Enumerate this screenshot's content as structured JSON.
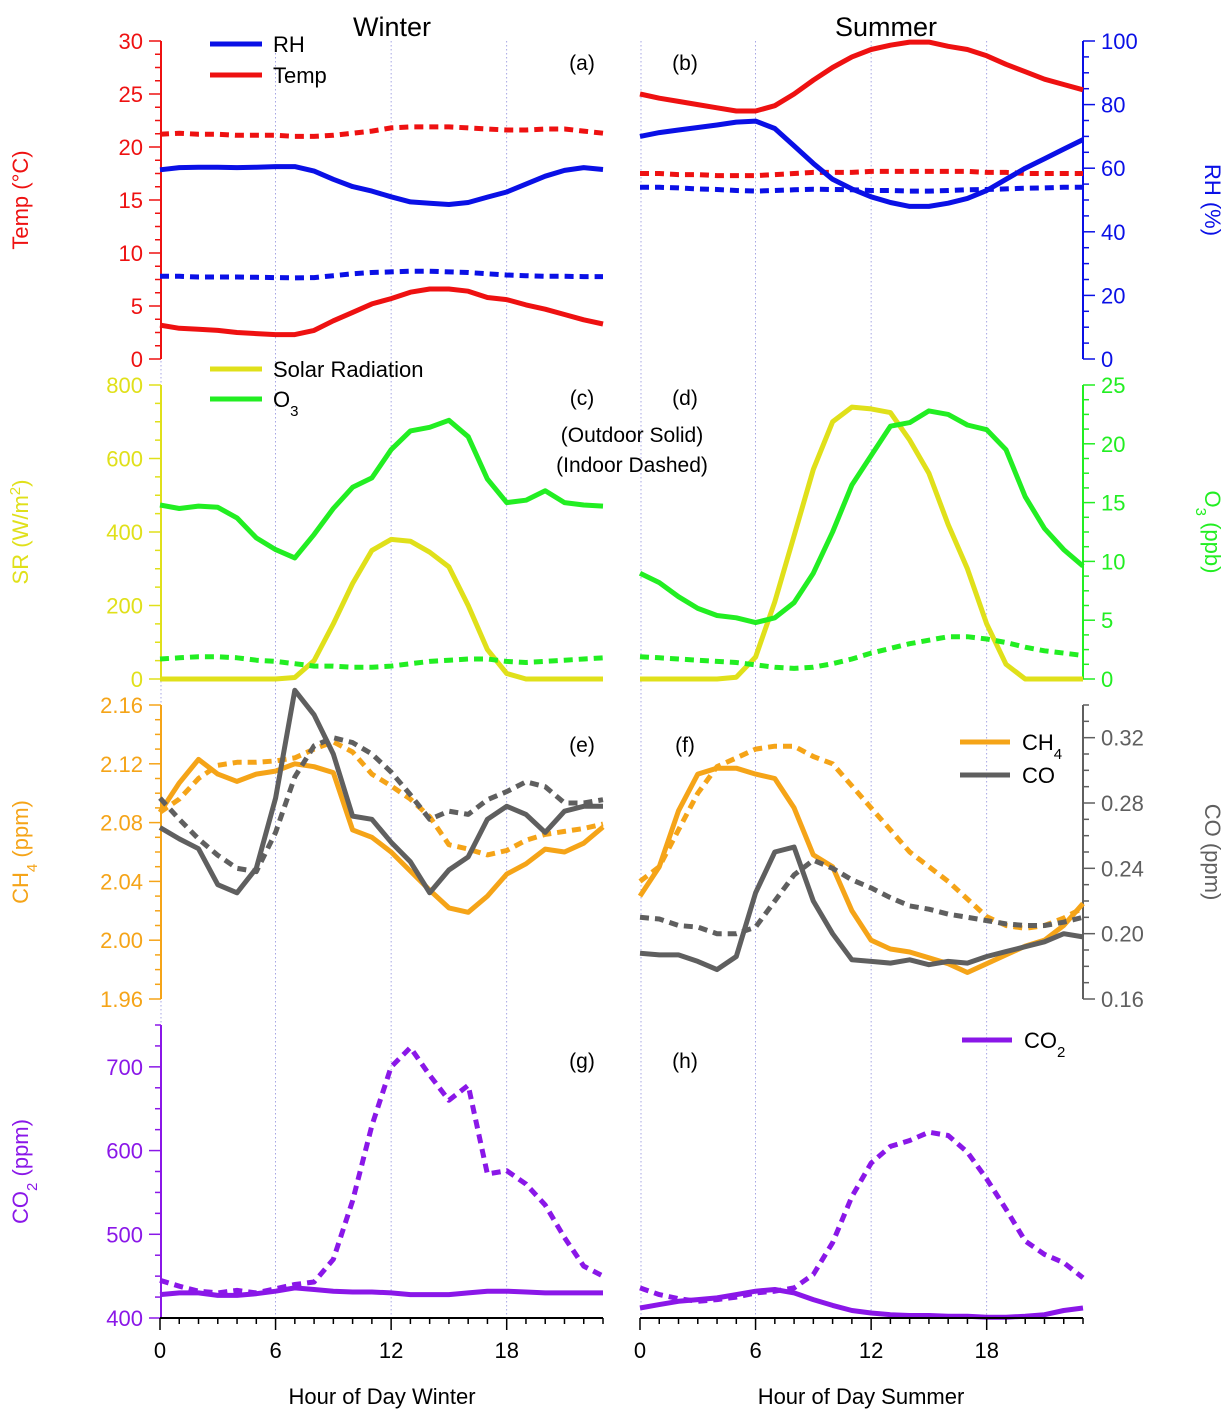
{
  "figure": {
    "title_winter": "Winter",
    "title_summer": "Summer",
    "xlabel_winter": "Hour of Day Winter",
    "xlabel_summer": "Hour of Day Summer",
    "note_outdoor": "(Outdoor Solid)",
    "note_indoor": "(Indoor Dashed)",
    "x_ticks": [
      "0",
      "6",
      "12",
      "18"
    ]
  },
  "colors": {
    "rh": "#0a10e6",
    "temp": "#ee1111",
    "sr": "#e0e01a",
    "o3": "#22ee22",
    "ch4": "#f5a418",
    "co": "#5f5f5f",
    "co2": "#8a17e8",
    "gridline": "#9090dd"
  },
  "chart_data": [
    {
      "type": "line",
      "panels": [
        "(a)",
        "(b)"
      ],
      "x_range": [
        0,
        23
      ],
      "left_axis": {
        "label": "Temp (°C)",
        "ylim": [
          0,
          30
        ],
        "ticks": [
          "0",
          "5",
          "10",
          "15",
          "20",
          "25",
          "30"
        ],
        "color": "#ee1111"
      },
      "right_axis": {
        "label": "RH (%)",
        "ylim": [
          0,
          100
        ],
        "ticks": [
          "0",
          "20",
          "40",
          "60",
          "80",
          "100"
        ],
        "color": "#0a10e6"
      },
      "legend": [
        "RH",
        "Temp"
      ],
      "series": [
        {
          "name": "Temp",
          "season": "winter",
          "style": "solid",
          "axis": "left",
          "color": "#ee1111",
          "values": [
            3.2,
            2.9,
            2.8,
            2.7,
            2.5,
            2.4,
            2.3,
            2.3,
            2.7,
            3.6,
            4.4,
            5.2,
            5.7,
            6.3,
            6.6,
            6.6,
            6.4,
            5.8,
            5.6,
            5.1,
            4.7,
            4.2,
            3.7,
            3.3
          ]
        },
        {
          "name": "Temp",
          "season": "winter",
          "style": "dashed",
          "axis": "left",
          "color": "#ee1111",
          "values": [
            21.2,
            21.3,
            21.2,
            21.2,
            21.1,
            21.1,
            21.1,
            21.0,
            21.0,
            21.1,
            21.3,
            21.5,
            21.8,
            21.9,
            21.9,
            21.9,
            21.8,
            21.7,
            21.6,
            21.6,
            21.7,
            21.7,
            21.5,
            21.3
          ]
        },
        {
          "name": "RH",
          "season": "winter",
          "style": "solid",
          "axis": "right",
          "color": "#0a10e6",
          "values": [
            59.5,
            60.2,
            60.3,
            60.3,
            60.2,
            60.3,
            60.5,
            60.5,
            59.1,
            56.5,
            54.2,
            52.8,
            51.0,
            49.4,
            49.0,
            48.6,
            49.2,
            50.9,
            52.5,
            55.0,
            57.5,
            59.3,
            60.2,
            59.6
          ]
        },
        {
          "name": "RH",
          "season": "winter",
          "style": "dashed",
          "axis": "right",
          "color": "#0a10e6",
          "values": [
            26.0,
            26.0,
            25.8,
            25.8,
            25.8,
            25.7,
            25.6,
            25.5,
            25.6,
            26.2,
            26.8,
            27.2,
            27.4,
            27.6,
            27.6,
            27.4,
            27.2,
            26.8,
            26.4,
            26.2,
            26.0,
            26.0,
            25.9,
            25.9
          ]
        },
        {
          "name": "Temp",
          "season": "summer",
          "style": "solid",
          "axis": "left",
          "color": "#ee1111",
          "values": [
            25.0,
            24.6,
            24.3,
            24.0,
            23.7,
            23.4,
            23.4,
            23.9,
            25.0,
            26.3,
            27.5,
            28.5,
            29.2,
            29.6,
            29.9,
            29.9,
            29.5,
            29.2,
            28.6,
            27.8,
            27.1,
            26.4,
            25.9,
            25.4
          ]
        },
        {
          "name": "Temp",
          "season": "summer",
          "style": "dashed",
          "axis": "left",
          "color": "#ee1111",
          "values": [
            17.5,
            17.5,
            17.4,
            17.4,
            17.3,
            17.3,
            17.3,
            17.4,
            17.5,
            17.6,
            17.6,
            17.6,
            17.7,
            17.7,
            17.7,
            17.7,
            17.7,
            17.7,
            17.6,
            17.6,
            17.5,
            17.5,
            17.5,
            17.5
          ]
        },
        {
          "name": "RH",
          "season": "summer",
          "style": "solid",
          "axis": "right",
          "color": "#0a10e6",
          "values": [
            70.0,
            71.2,
            72.0,
            72.8,
            73.6,
            74.5,
            74.8,
            72.5,
            67.0,
            61.5,
            56.5,
            53.5,
            51.0,
            49.2,
            48.0,
            48.0,
            49.0,
            50.5,
            53.0,
            56.5,
            60.0,
            63.0,
            66.0,
            69.0
          ]
        },
        {
          "name": "RH",
          "season": "summer",
          "style": "dashed",
          "axis": "right",
          "color": "#0a10e6",
          "values": [
            54.0,
            54.0,
            53.8,
            53.5,
            53.3,
            53.0,
            52.8,
            53.0,
            53.2,
            53.4,
            53.3,
            53.2,
            53.0,
            53.0,
            52.8,
            52.8,
            53.0,
            53.2,
            53.3,
            53.5,
            53.7,
            53.8,
            54.0,
            54.0
          ]
        }
      ]
    },
    {
      "type": "line",
      "panels": [
        "(c)",
        "(d)"
      ],
      "x_range": [
        0,
        23
      ],
      "left_axis": {
        "label": "SR (W/m²)",
        "ylim": [
          0,
          800
        ],
        "ticks": [
          "0",
          "200",
          "400",
          "600",
          "800"
        ],
        "color": "#e0e01a"
      },
      "right_axis": {
        "label": "O₃ (ppb)",
        "ylim": [
          0,
          25
        ],
        "ticks": [
          "0",
          "5",
          "10",
          "15",
          "20",
          "25"
        ],
        "color": "#22ee22"
      },
      "legend": [
        "Solar Radiation",
        "O₃"
      ],
      "series": [
        {
          "name": "Solar Radiation",
          "season": "winter",
          "style": "solid",
          "axis": "left",
          "color": "#e0e01a",
          "values": [
            0,
            0,
            0,
            0,
            0,
            0,
            0,
            4,
            50,
            150,
            260,
            350,
            380,
            375,
            345,
            305,
            200,
            80,
            15,
            0,
            0,
            0,
            0,
            0
          ]
        },
        {
          "name": "O₃",
          "season": "winter",
          "style": "solid",
          "axis": "right",
          "color": "#22ee22",
          "values": [
            14.8,
            14.5,
            14.7,
            14.6,
            13.7,
            12.0,
            11.0,
            10.3,
            12.3,
            14.5,
            16.3,
            17.1,
            19.5,
            21.1,
            21.4,
            22.0,
            20.6,
            17.0,
            15.0,
            15.2,
            16.0,
            15.0,
            14.8,
            14.7
          ]
        },
        {
          "name": "O₃",
          "season": "winter",
          "style": "dashed",
          "axis": "right",
          "color": "#22ee22",
          "values": [
            1.7,
            1.8,
            1.9,
            1.9,
            1.8,
            1.6,
            1.5,
            1.3,
            1.1,
            1.1,
            1.0,
            1.0,
            1.1,
            1.3,
            1.5,
            1.6,
            1.7,
            1.7,
            1.5,
            1.4,
            1.5,
            1.6,
            1.7,
            1.8
          ]
        },
        {
          "name": "Solar Radiation",
          "season": "summer",
          "style": "solid",
          "axis": "left",
          "color": "#e0e01a",
          "values": [
            0,
            0,
            0,
            0,
            0,
            5,
            60,
            210,
            390,
            570,
            700,
            740,
            735,
            725,
            650,
            560,
            420,
            300,
            150,
            40,
            0,
            0,
            0,
            0
          ]
        },
        {
          "name": "O₃",
          "season": "summer",
          "style": "solid",
          "axis": "right",
          "color": "#22ee22",
          "values": [
            9.0,
            8.2,
            7.0,
            6.0,
            5.4,
            5.2,
            4.8,
            5.2,
            6.5,
            9.0,
            12.5,
            16.5,
            19.0,
            21.5,
            21.8,
            22.8,
            22.5,
            21.6,
            21.2,
            19.5,
            15.5,
            12.8,
            11.0,
            9.6
          ]
        },
        {
          "name": "O₃",
          "season": "summer",
          "style": "dashed",
          "axis": "right",
          "color": "#22ee22",
          "values": [
            1.9,
            1.8,
            1.7,
            1.6,
            1.5,
            1.4,
            1.2,
            1.0,
            0.9,
            1.0,
            1.3,
            1.7,
            2.2,
            2.6,
            3.0,
            3.3,
            3.6,
            3.6,
            3.4,
            3.1,
            2.7,
            2.4,
            2.2,
            2.0
          ]
        }
      ]
    },
    {
      "type": "line",
      "panels": [
        "(e)",
        "(f)"
      ],
      "x_range": [
        0,
        23
      ],
      "left_axis": {
        "label": "CH₄ (ppm)",
        "ylim": [
          1.96,
          2.16
        ],
        "ticks": [
          "1.96",
          "2.00",
          "2.04",
          "2.08",
          "2.12",
          "2.16"
        ],
        "color": "#f5a418"
      },
      "right_axis": {
        "label": "CO (ppm)",
        "ylim": [
          0.16,
          0.34
        ],
        "ticks": [
          "0.16",
          "0.20",
          "0.24",
          "0.28",
          "0.32"
        ],
        "color": "#5f5f5f"
      },
      "legend": [
        "CH₄",
        "CO"
      ],
      "series": [
        {
          "name": "CH₄",
          "season": "winter",
          "style": "solid",
          "axis": "left",
          "color": "#f5a418",
          "values": [
            2.087,
            2.107,
            2.123,
            2.113,
            2.108,
            2.113,
            2.115,
            2.12,
            2.118,
            2.114,
            2.075,
            2.07,
            2.06,
            2.047,
            2.034,
            2.022,
            2.019,
            2.03,
            2.045,
            2.052,
            2.062,
            2.06,
            2.066,
            2.077
          ]
        },
        {
          "name": "CH₄",
          "season": "winter",
          "style": "dashed",
          "axis": "left",
          "color": "#f5a418",
          "values": [
            2.087,
            2.096,
            2.11,
            2.119,
            2.121,
            2.121,
            2.122,
            2.124,
            2.13,
            2.135,
            2.128,
            2.113,
            2.105,
            2.096,
            2.084,
            2.065,
            2.062,
            2.058,
            2.061,
            2.068,
            2.072,
            2.074,
            2.076,
            2.079
          ]
        },
        {
          "name": "CO",
          "season": "winter",
          "style": "solid",
          "axis": "right",
          "color": "#5f5f5f",
          "values": [
            0.265,
            0.258,
            0.252,
            0.23,
            0.225,
            0.24,
            0.283,
            0.349,
            0.334,
            0.31,
            0.272,
            0.27,
            0.256,
            0.244,
            0.225,
            0.239,
            0.247,
            0.27,
            0.278,
            0.273,
            0.262,
            0.275,
            0.278,
            0.278
          ]
        },
        {
          "name": "CO",
          "season": "winter",
          "style": "dashed",
          "axis": "right",
          "color": "#5f5f5f",
          "values": [
            0.283,
            0.27,
            0.258,
            0.248,
            0.24,
            0.238,
            0.262,
            0.296,
            0.315,
            0.32,
            0.317,
            0.31,
            0.299,
            0.285,
            0.27,
            0.275,
            0.273,
            0.282,
            0.287,
            0.293,
            0.29,
            0.28,
            0.28,
            0.282
          ]
        },
        {
          "name": "CH₄",
          "season": "summer",
          "style": "solid",
          "axis": "left",
          "color": "#f5a418",
          "values": [
            2.03,
            2.05,
            2.088,
            2.113,
            2.117,
            2.117,
            2.113,
            2.11,
            2.09,
            2.058,
            2.05,
            2.02,
            2.0,
            1.994,
            1.992,
            1.988,
            1.984,
            1.978,
            1.984,
            1.99,
            1.996,
            2.0,
            2.01,
            2.025
          ]
        },
        {
          "name": "CH₄",
          "season": "summer",
          "style": "dashed",
          "axis": "left",
          "color": "#f5a418",
          "values": [
            2.04,
            2.05,
            2.075,
            2.1,
            2.118,
            2.124,
            2.13,
            2.132,
            2.132,
            2.125,
            2.12,
            2.105,
            2.09,
            2.075,
            2.06,
            2.05,
            2.04,
            2.028,
            2.016,
            2.01,
            2.008,
            2.01,
            2.015,
            2.022
          ]
        },
        {
          "name": "CO",
          "season": "summer",
          "style": "solid",
          "axis": "right",
          "color": "#5f5f5f",
          "values": [
            0.188,
            0.187,
            0.187,
            0.183,
            0.178,
            0.186,
            0.225,
            0.25,
            0.253,
            0.22,
            0.2,
            0.184,
            0.183,
            0.182,
            0.184,
            0.181,
            0.183,
            0.182,
            0.186,
            0.189,
            0.192,
            0.195,
            0.2,
            0.198
          ]
        },
        {
          "name": "CO",
          "season": "summer",
          "style": "dashed",
          "axis": "right",
          "color": "#5f5f5f",
          "values": [
            0.21,
            0.209,
            0.205,
            0.204,
            0.2,
            0.2,
            0.204,
            0.22,
            0.236,
            0.245,
            0.24,
            0.233,
            0.228,
            0.222,
            0.217,
            0.215,
            0.212,
            0.21,
            0.208,
            0.206,
            0.205,
            0.205,
            0.207,
            0.21
          ]
        }
      ]
    },
    {
      "type": "line",
      "panels": [
        "(g)",
        "(h)"
      ],
      "x_range": [
        0,
        23
      ],
      "left_axis": {
        "label": "CO₂ (ppm)",
        "ylim": [
          400,
          750
        ],
        "ticks": [
          "400",
          "500",
          "600",
          "700"
        ],
        "color": "#8a17e8"
      },
      "legend": [
        "CO₂"
      ],
      "series": [
        {
          "name": "CO₂",
          "season": "winter",
          "style": "solid",
          "axis": "left",
          "color": "#8a17e8",
          "values": [
            428,
            430,
            430,
            427,
            427,
            429,
            432,
            436,
            434,
            432,
            431,
            431,
            430,
            428,
            428,
            428,
            430,
            432,
            432,
            431,
            430,
            430,
            430,
            430
          ]
        },
        {
          "name": "CO₂",
          "season": "winter",
          "style": "dashed",
          "axis": "left",
          "color": "#8a17e8",
          "values": [
            445,
            438,
            432,
            430,
            433,
            430,
            435,
            440,
            443,
            470,
            540,
            630,
            700,
            723,
            690,
            660,
            678,
            572,
            576,
            560,
            535,
            496,
            462,
            450
          ]
        },
        {
          "name": "CO₂",
          "season": "summer",
          "style": "solid",
          "axis": "left",
          "color": "#8a17e8",
          "values": [
            412,
            416,
            420,
            422,
            424,
            428,
            432,
            434,
            430,
            422,
            415,
            409,
            406,
            404,
            403,
            403,
            402,
            402,
            401,
            401,
            402,
            404,
            409,
            412
          ]
        },
        {
          "name": "CO₂",
          "season": "summer",
          "style": "dashed",
          "axis": "left",
          "color": "#8a17e8",
          "values": [
            436,
            428,
            423,
            420,
            422,
            425,
            430,
            432,
            436,
            452,
            490,
            545,
            585,
            605,
            612,
            622,
            618,
            598,
            566,
            530,
            492,
            476,
            466,
            448
          ]
        }
      ]
    }
  ]
}
